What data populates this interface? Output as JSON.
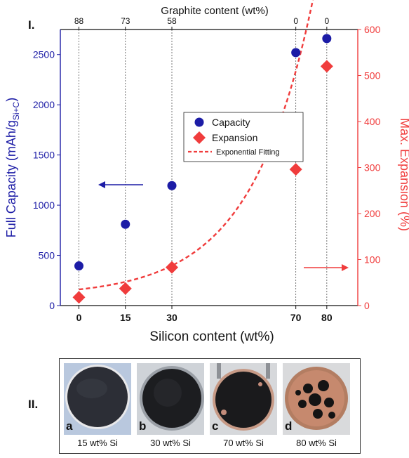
{
  "panel_labels": {
    "chart": "I.",
    "photos": "II."
  },
  "colors": {
    "capacity": "#1c1ca6",
    "expansion": "#f03c3c",
    "fit": "#f03c3c",
    "text": "#111111",
    "grid": "#555555"
  },
  "chart_data": {
    "type": "scatter",
    "title": "",
    "xlabel": "Silicon content (wt%)",
    "top_xlabel": "Graphite content (wt%)",
    "ylabel_left_main": "Full Capacity (mAh/g",
    "ylabel_left_sub": "Si+C",
    "ylabel_left_close": ")",
    "ylabel_right": "Max. Expansion (%)",
    "x_categories": [
      "0",
      "15",
      "30",
      "70",
      "80"
    ],
    "top_ticks": [
      "88",
      "73",
      "58",
      "0",
      "0"
    ],
    "ylim_left": [
      0,
      2750
    ],
    "yticks_left": [
      0,
      500,
      1000,
      1500,
      2000,
      2500
    ],
    "ylim_right": [
      0,
      600
    ],
    "yticks_right": [
      0,
      100,
      200,
      300,
      400,
      500,
      600
    ],
    "series": [
      {
        "name": "Capacity",
        "axis": "left",
        "marker": "circle",
        "x": [
          0,
          15,
          30,
          70,
          80
        ],
        "y": [
          395,
          810,
          1195,
          2520,
          2660
        ]
      },
      {
        "name": "Expansion",
        "axis": "right",
        "marker": "diamond",
        "x": [
          0,
          15,
          30,
          70,
          80
        ],
        "y": [
          18,
          37,
          83,
          296,
          520
        ]
      },
      {
        "name": "Exponential Fitting",
        "axis": "right",
        "marker": "dashed-line",
        "fit": {
          "a": 20,
          "b": 15,
          "c": 0.0498
        }
      }
    ],
    "legend_position": "center-right",
    "annotations": [
      "arrow-left-toward-left-axis",
      "arrow-right-toward-right-axis"
    ]
  },
  "photos": [
    {
      "letter": "a",
      "caption": "15 wt% Si"
    },
    {
      "letter": "b",
      "caption": "30 wt% Si"
    },
    {
      "letter": "c",
      "caption": "70 wt% Si"
    },
    {
      "letter": "d",
      "caption": "80 wt% Si"
    }
  ]
}
